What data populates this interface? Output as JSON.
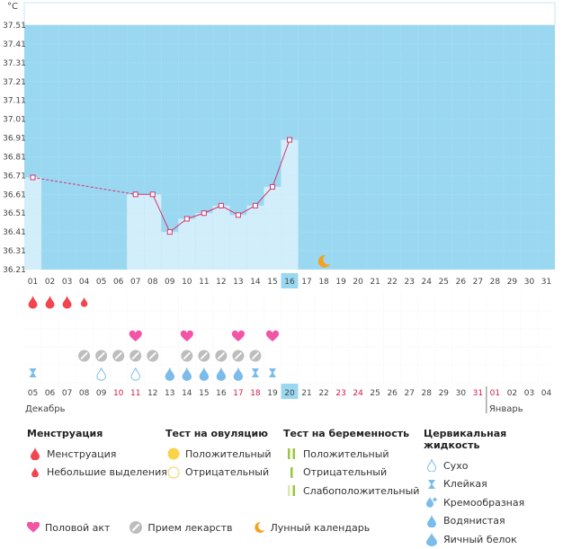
{
  "unit": "°C",
  "colors": {
    "accent": "#d6336c",
    "sky": "#9ad8f2",
    "column": "#d2eefb",
    "grid": "#c2e4f4",
    "menstruation": "#f2454f",
    "heart": "#f355a6",
    "drop": "#7cbcea"
  },
  "chart_data": {
    "type": "line",
    "ylabel": "°C",
    "yticks": [
      "36.21",
      "36.31",
      "36.41",
      "36.51",
      "36.61",
      "36.71",
      "36.81",
      "36.91",
      "37.01",
      "37.11",
      "37.21",
      "37.31",
      "37.41",
      "37.51"
    ],
    "ylim": [
      36.21,
      37.51
    ],
    "x": [
      "01",
      "02",
      "03",
      "04",
      "05",
      "06",
      "07",
      "08",
      "09",
      "10",
      "11",
      "12",
      "13",
      "14",
      "15",
      "16",
      "17",
      "18",
      "19",
      "20",
      "21",
      "22",
      "23",
      "24",
      "25",
      "26",
      "27",
      "28",
      "29",
      "30",
      "31"
    ],
    "today_index": 15,
    "values": [
      36.7,
      null,
      null,
      null,
      null,
      null,
      36.61,
      36.61,
      36.41,
      36.48,
      36.51,
      36.55,
      36.5,
      36.55,
      36.65,
      36.9,
      null,
      null,
      null,
      null,
      null,
      null,
      null,
      null,
      null,
      null,
      null,
      null,
      null,
      null,
      null
    ],
    "moon_index": 17
  },
  "symbols": {
    "menstruation": [
      0,
      1,
      2
    ],
    "light_spotting": [
      3
    ],
    "intercourse": [
      6,
      9,
      12,
      14
    ],
    "medication": [
      3,
      4,
      5,
      6,
      7,
      9,
      10,
      11,
      12,
      13
    ],
    "sticky": [
      0,
      13,
      14
    ],
    "dry": [
      4,
      6
    ],
    "eggwhite": [
      8,
      9,
      10,
      11,
      12
    ]
  },
  "cycle_days": [
    "05",
    "06",
    "07",
    "08",
    "09",
    "10",
    "11",
    "12",
    "13",
    "14",
    "15",
    "16",
    "17",
    "18",
    "19",
    "20",
    "21",
    "22",
    "23",
    "24",
    "25",
    "26",
    "27",
    "28",
    "29",
    "30",
    "31",
    "01",
    "02",
    "03",
    "04"
  ],
  "cycle_red_indices": [
    5,
    6,
    12,
    13,
    18,
    19,
    26,
    27
  ],
  "month_left": "Декабрь",
  "month_right": "Январь",
  "month_right_start_index": 27,
  "legend": {
    "menstruation": {
      "title": "Менструация",
      "items": [
        "Менструация",
        "Небольшие выделения"
      ]
    },
    "ovulation_test": {
      "title": "Тест на овуляцию",
      "items": [
        "Положительный",
        "Отрицательный"
      ]
    },
    "pregnancy_test": {
      "title": "Тест на беременность",
      "items": [
        "Положительный",
        "Отрицательный",
        "Слабоположительный"
      ]
    },
    "cervical_fluid": {
      "title": "Цервикальная жидкость",
      "items": [
        "Сухо",
        "Клейкая",
        "Кремообразная",
        "Водянистая",
        "Яичный белок"
      ]
    }
  },
  "bottom_legend": [
    "Половой акт",
    "Прием лекарств",
    "Лунный календарь"
  ]
}
